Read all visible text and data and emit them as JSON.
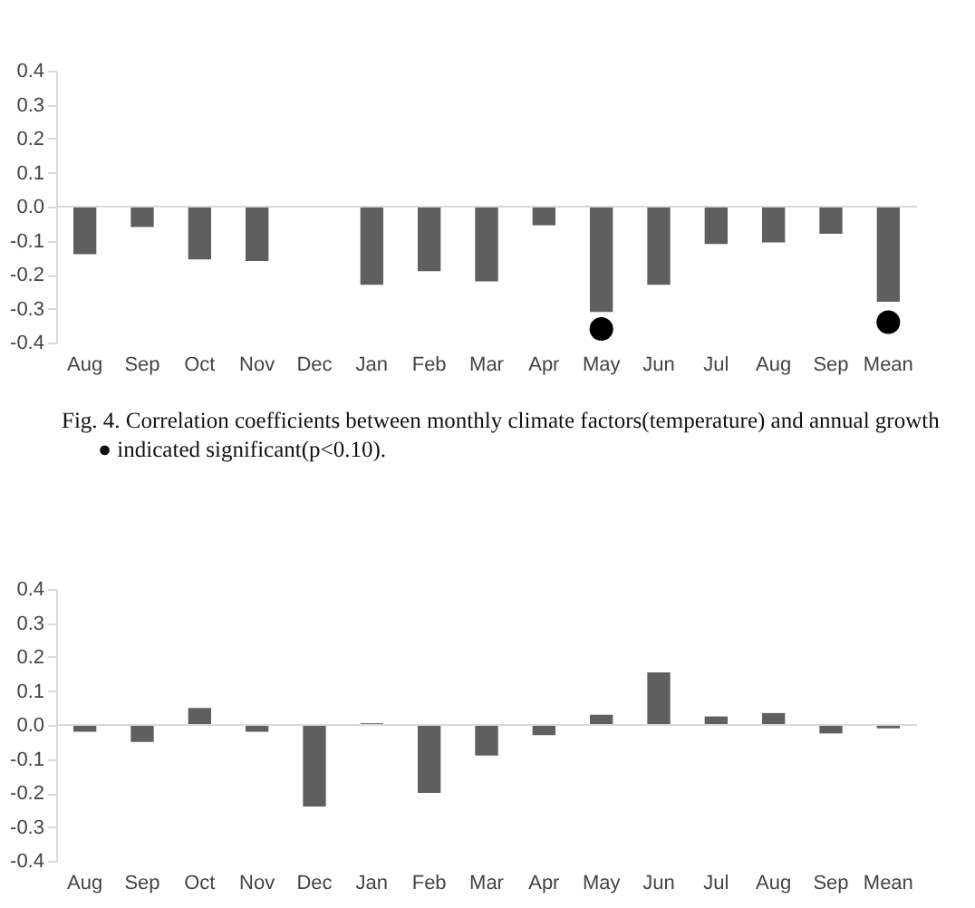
{
  "chart_data": [
    {
      "type": "bar",
      "categories": [
        "Aug",
        "Sep",
        "Oct",
        "Nov",
        "Dec",
        "Jan",
        "Feb",
        "Mar",
        "Apr",
        "May",
        "Jun",
        "Jul",
        "Aug",
        "Sep",
        "Mean"
      ],
      "series": [
        {
          "color": "#5f5f5f",
          "values": [
            -0.14,
            -0.06,
            -0.155,
            -0.16,
            0.0,
            -0.23,
            -0.19,
            -0.22,
            -0.055,
            -0.31,
            -0.23,
            -0.11,
            -0.105,
            -0.08,
            -0.28
          ]
        },
        {
          "type": "scatter",
          "color": "#000000",
          "marker": "circle",
          "x": [
            "May",
            "Mean"
          ],
          "values": [
            -0.36,
            -0.34
          ]
        }
      ],
      "ylim": [
        -0.4,
        0.4
      ],
      "yticks": [
        -0.4,
        -0.3,
        -0.2,
        -0.1,
        {
          "value": 0,
          "label": "0.0"
        },
        0.1,
        0.2,
        0.3,
        0.4
      ],
      "ref_lines": [
        {
          "axis": "y",
          "value": 0,
          "color": "#d9d9d9"
        }
      ],
      "annotations": [
        "Fig. 4. Correlation coefficients between monthly climate factors(temperature) and annual growth",
        "● indicated significant(p<0.10)."
      ]
    },
    {
      "type": "bar",
      "categories": [
        "Aug",
        "Sep",
        "Oct",
        "Nov",
        "Dec",
        "Jan",
        "Feb",
        "Mar",
        "Apr",
        "May",
        "Jun",
        "Jul",
        "Aug",
        "Sep",
        "Mean"
      ],
      "series": [
        {
          "color": "#5f5f5f",
          "values": [
            -0.02,
            -0.05,
            0.05,
            -0.02,
            -0.24,
            0.005,
            -0.2,
            -0.09,
            -0.03,
            0.03,
            0.155,
            0.025,
            0.035,
            -0.025,
            -0.01
          ]
        }
      ],
      "ylim": [
        -0.4,
        0.4
      ],
      "yticks": [
        -0.4,
        -0.3,
        -0.2,
        -0.1,
        {
          "value": 0,
          "label": "0.0"
        },
        0.1,
        0.2,
        0.3,
        0.4
      ],
      "ref_lines": [
        {
          "axis": "y",
          "value": 0,
          "color": "#d9d9d9"
        }
      ]
    }
  ]
}
